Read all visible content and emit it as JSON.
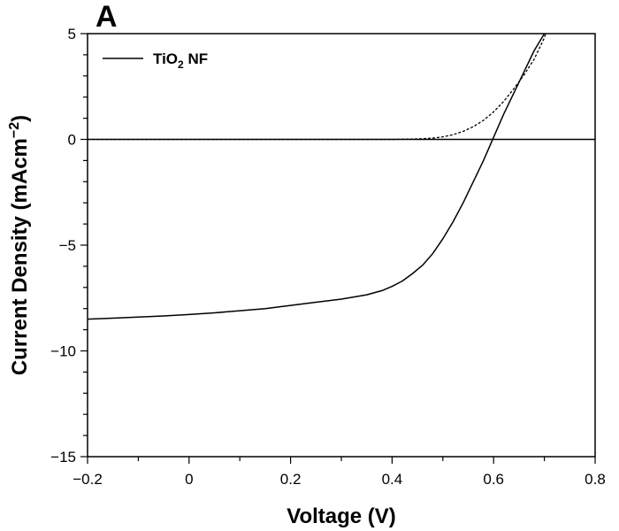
{
  "chart_data": {
    "type": "line",
    "panel_label": "A",
    "xlabel": "Voltage (V)",
    "ylabel_main": "Current Density (mAcm",
    "ylabel_sup": "−2",
    "ylabel_end": ")",
    "xlim": [
      -0.2,
      0.8
    ],
    "ylim": [
      -15,
      5
    ],
    "xticks": [
      -0.2,
      0,
      0.2,
      0.4,
      0.6,
      0.8
    ],
    "xtick_labels": [
      "−0.2",
      "0",
      "0.2",
      "0.4",
      "0.6",
      "0.8"
    ],
    "yticks": [
      -15,
      -10,
      -5,
      0,
      5
    ],
    "ytick_labels": [
      "−15",
      "−10",
      "−5",
      "0",
      "5"
    ],
    "zero_line": true,
    "legend": {
      "position": "top-left",
      "entries": [
        {
          "label_main": "TiO",
          "label_sub": "2",
          "label_end": " NF",
          "series": "light"
        }
      ]
    },
    "series": [
      {
        "name": "light",
        "style": "solid",
        "x": [
          -0.2,
          -0.15,
          -0.1,
          -0.05,
          0.0,
          0.05,
          0.1,
          0.15,
          0.2,
          0.25,
          0.3,
          0.35,
          0.38,
          0.4,
          0.42,
          0.44,
          0.46,
          0.48,
          0.5,
          0.52,
          0.54,
          0.56,
          0.58,
          0.6,
          0.62,
          0.64,
          0.66,
          0.68,
          0.7,
          0.705
        ],
        "y": [
          -8.5,
          -8.45,
          -8.4,
          -8.35,
          -8.28,
          -8.2,
          -8.1,
          -8.0,
          -7.85,
          -7.7,
          -7.55,
          -7.35,
          -7.15,
          -6.95,
          -6.7,
          -6.35,
          -5.95,
          -5.4,
          -4.7,
          -3.9,
          -3.0,
          -2.0,
          -1.0,
          0.1,
          1.2,
          2.2,
          3.2,
          4.2,
          5.0,
          5.3
        ]
      },
      {
        "name": "dark",
        "style": "dashed",
        "x": [
          -0.2,
          0.0,
          0.2,
          0.4,
          0.45,
          0.48,
          0.5,
          0.52,
          0.54,
          0.56,
          0.58,
          0.6,
          0.62,
          0.64,
          0.66,
          0.68,
          0.7,
          0.705
        ],
        "y": [
          0,
          0,
          0,
          0,
          0.02,
          0.06,
          0.12,
          0.22,
          0.38,
          0.6,
          0.9,
          1.3,
          1.8,
          2.4,
          3.05,
          3.8,
          4.8,
          5.2
        ]
      }
    ]
  }
}
